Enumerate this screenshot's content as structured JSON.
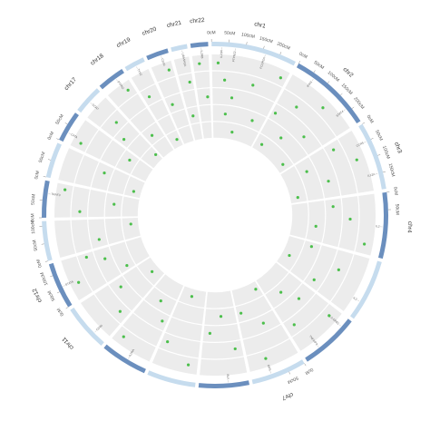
{
  "chart_data": {
    "type": "circos",
    "title": "",
    "colors": {
      "chrom_dark": "#6b8fbe",
      "chrom_light": "#c6dcee",
      "track_bg": "#ececec",
      "point": "#4cbf4c",
      "gene_label": "#666666"
    },
    "chromosomes": [
      {
        "name": "chr1",
        "label": "chr1",
        "length": 249,
        "ticks": [
          "0cM",
          "50cM",
          "100cM",
          "150cM",
          "200cM"
        ]
      },
      {
        "name": "chr2",
        "label": "chr2",
        "length": 243,
        "ticks": [
          "0cM",
          "50cM",
          "100cM",
          "150cM",
          "200cM"
        ]
      },
      {
        "name": "chr3",
        "label": "chr3",
        "length": 198,
        "ticks": [
          "0cM",
          "50cM",
          "100cM",
          "150cM"
        ]
      },
      {
        "name": "chr4",
        "label": "chr4",
        "length": 191,
        "ticks": [
          "0cM",
          "50cM"
        ]
      },
      {
        "name": "chr5",
        "label": "",
        "length": 181,
        "ticks": []
      },
      {
        "name": "chr6",
        "label": "",
        "length": 171,
        "ticks": []
      },
      {
        "name": "chr7",
        "label": "chr7",
        "length": 159,
        "ticks": [
          "0cM",
          "50cM"
        ]
      },
      {
        "name": "chr8",
        "label": "",
        "length": 146,
        "ticks": []
      },
      {
        "name": "chr9",
        "label": "",
        "length": 141,
        "ticks": []
      },
      {
        "name": "chr10",
        "label": "",
        "length": 136,
        "ticks": []
      },
      {
        "name": "chr11",
        "label": "chr11",
        "length": 135,
        "ticks": []
      },
      {
        "name": "chr12",
        "label": "chr12",
        "length": 134,
        "ticks": [
          "0cM",
          "50cM",
          "100cM"
        ]
      },
      {
        "name": "chr13",
        "label": "",
        "length": 115,
        "ticks": [
          "0cM",
          "50cM",
          "100cM"
        ]
      },
      {
        "name": "chr14",
        "label": "",
        "length": 107,
        "ticks": [
          "0cM",
          "50cM"
        ]
      },
      {
        "name": "chr15",
        "label": "",
        "length": 103,
        "ticks": [
          "0cM",
          "50cM"
        ]
      },
      {
        "name": "chr16",
        "label": "",
        "length": 90,
        "ticks": [
          "0cM",
          "50cM"
        ]
      },
      {
        "name": "chr17",
        "label": "chr17",
        "length": 83,
        "ticks": []
      },
      {
        "name": "chr18",
        "label": "chr18",
        "length": 80,
        "ticks": []
      },
      {
        "name": "chr19",
        "label": "chr19",
        "length": 59,
        "ticks": []
      },
      {
        "name": "chr20",
        "label": "chr20",
        "length": 64,
        "ticks": []
      },
      {
        "name": "chr21",
        "label": "chr21",
        "length": 47,
        "ticks": []
      },
      {
        "name": "chr22",
        "label": "chr22",
        "length": 51,
        "ticks": []
      }
    ],
    "tracks": 5,
    "points": [
      {
        "chr": "chr1",
        "pos": 20,
        "track": 1
      },
      {
        "chr": "chr1",
        "pos": 45,
        "track": 2
      },
      {
        "chr": "chr1",
        "pos": 60,
        "track": 4
      },
      {
        "chr": "chr1",
        "pos": 80,
        "track": 3
      },
      {
        "chr": "chr1",
        "pos": 110,
        "track": 5
      },
      {
        "chr": "chr1",
        "pos": 150,
        "track": 2
      },
      {
        "chr": "chr1",
        "pos": 195,
        "track": 4
      },
      {
        "chr": "chr1",
        "pos": 230,
        "track": 1
      },
      {
        "chr": "chr2",
        "pos": 15,
        "track": 3
      },
      {
        "chr": "chr2",
        "pos": 40,
        "track": 5
      },
      {
        "chr": "chr2",
        "pos": 70,
        "track": 2
      },
      {
        "chr": "chr2",
        "pos": 100,
        "track": 4
      },
      {
        "chr": "chr2",
        "pos": 140,
        "track": 1
      },
      {
        "chr": "chr2",
        "pos": 170,
        "track": 3
      },
      {
        "chr": "chr2",
        "pos": 210,
        "track": 5
      },
      {
        "chr": "chr3",
        "pos": 25,
        "track": 2
      },
      {
        "chr": "chr3",
        "pos": 55,
        "track": 4
      },
      {
        "chr": "chr3",
        "pos": 90,
        "track": 1
      },
      {
        "chr": "chr3",
        "pos": 130,
        "track": 3
      },
      {
        "chr": "chr3",
        "pos": 170,
        "track": 5
      },
      {
        "chr": "chr4",
        "pos": 30,
        "track": 3
      },
      {
        "chr": "chr4",
        "pos": 80,
        "track": 2
      },
      {
        "chr": "chr4",
        "pos": 120,
        "track": 4
      },
      {
        "chr": "chr4",
        "pos": 160,
        "track": 1
      },
      {
        "chr": "chr5",
        "pos": 20,
        "track": 4
      },
      {
        "chr": "chr5",
        "pos": 70,
        "track": 2
      },
      {
        "chr": "chr5",
        "pos": 110,
        "track": 5
      },
      {
        "chr": "chr5",
        "pos": 150,
        "track": 3
      },
      {
        "chr": "chr6",
        "pos": 30,
        "track": 1
      },
      {
        "chr": "chr6",
        "pos": 60,
        "track": 3
      },
      {
        "chr": "chr6",
        "pos": 100,
        "track": 4
      },
      {
        "chr": "chr6",
        "pos": 140,
        "track": 2
      },
      {
        "chr": "chr7",
        "pos": 20,
        "track": 5
      },
      {
        "chr": "chr7",
        "pos": 60,
        "track": 3
      },
      {
        "chr": "chr7",
        "pos": 100,
        "track": 1
      },
      {
        "chr": "chr7",
        "pos": 140,
        "track": 4
      },
      {
        "chr": "chr8",
        "pos": 25,
        "track": 2
      },
      {
        "chr": "chr8",
        "pos": 70,
        "track": 4
      },
      {
        "chr": "chr8",
        "pos": 120,
        "track": 3
      },
      {
        "chr": "chr9",
        "pos": 30,
        "track": 1
      },
      {
        "chr": "chr9",
        "pos": 80,
        "track": 5
      },
      {
        "chr": "chr9",
        "pos": 120,
        "track": 2
      },
      {
        "chr": "chr10",
        "pos": 20,
        "track": 3
      },
      {
        "chr": "chr10",
        "pos": 70,
        "track": 4
      },
      {
        "chr": "chr10",
        "pos": 110,
        "track": 1
      },
      {
        "chr": "chr11",
        "pos": 30,
        "track": 2
      },
      {
        "chr": "chr11",
        "pos": 60,
        "track": 5
      },
      {
        "chr": "chr11",
        "pos": 100,
        "track": 3
      },
      {
        "chr": "chr12",
        "pos": 20,
        "track": 4
      },
      {
        "chr": "chr12",
        "pos": 50,
        "track": 1
      },
      {
        "chr": "chr12",
        "pos": 90,
        "track": 3
      },
      {
        "chr": "chr12",
        "pos": 120,
        "track": 2
      },
      {
        "chr": "chr13",
        "pos": 30,
        "track": 3
      },
      {
        "chr": "chr13",
        "pos": 80,
        "track": 5
      },
      {
        "chr": "chr14",
        "pos": 20,
        "track": 2
      },
      {
        "chr": "chr14",
        "pos": 60,
        "track": 4
      },
      {
        "chr": "chr14",
        "pos": 90,
        "track": 1
      },
      {
        "chr": "chr15",
        "pos": 30,
        "track": 5
      },
      {
        "chr": "chr15",
        "pos": 70,
        "track": 3
      },
      {
        "chr": "chr16",
        "pos": 20,
        "track": 1
      },
      {
        "chr": "chr16",
        "pos": 60,
        "track": 4
      },
      {
        "chr": "chr17",
        "pos": 20,
        "track": 3
      },
      {
        "chr": "chr17",
        "pos": 50,
        "track": 2
      },
      {
        "chr": "chr17",
        "pos": 70,
        "track": 5
      },
      {
        "chr": "chr18",
        "pos": 30,
        "track": 4
      },
      {
        "chr": "chr18",
        "pos": 60,
        "track": 1
      },
      {
        "chr": "chr19",
        "pos": 20,
        "track": 2
      },
      {
        "chr": "chr19",
        "pos": 40,
        "track": 5
      },
      {
        "chr": "chr20",
        "pos": 20,
        "track": 3
      },
      {
        "chr": "chr20",
        "pos": 50,
        "track": 1
      },
      {
        "chr": "chr21",
        "pos": 20,
        "track": 4
      },
      {
        "chr": "chr21",
        "pos": 35,
        "track": 2
      },
      {
        "chr": "chr22",
        "pos": 20,
        "track": 1
      },
      {
        "chr": "chr22",
        "pos": 40,
        "track": 3
      }
    ],
    "gene_labels": [
      {
        "chr": "chr1",
        "pos": 30,
        "text": "IL23R"
      },
      {
        "chr": "chr1",
        "pos": 70,
        "text": "PTPN22"
      },
      {
        "chr": "chr1",
        "pos": 160,
        "text": "FCGR2A"
      },
      {
        "chr": "chr2",
        "pos": 60,
        "text": "IFIH1"
      },
      {
        "chr": "chr2",
        "pos": 190,
        "text": "STAT4"
      },
      {
        "chr": "chr3",
        "pos": 50,
        "text": "CCR5"
      },
      {
        "chr": "chr3",
        "pos": 150,
        "text": "IL12A"
      },
      {
        "chr": "chr4",
        "pos": 100,
        "text": "IL2"
      },
      {
        "chr": "chr5",
        "pos": 130,
        "text": "IL3"
      },
      {
        "chr": "chr6",
        "pos": 30,
        "text": "HLA-DRB1"
      },
      {
        "chr": "chr6",
        "pos": 120,
        "text": "TNFAIP3"
      },
      {
        "chr": "chr7",
        "pos": 100,
        "text": "IRF5"
      },
      {
        "chr": "chr8",
        "pos": 60,
        "text": "BLK"
      },
      {
        "chr": "chr10",
        "pos": 60,
        "text": "IL2RA"
      },
      {
        "chr": "chr11",
        "pos": 40,
        "text": "CD40"
      },
      {
        "chr": "chr12",
        "pos": 60,
        "text": "STAT6"
      },
      {
        "chr": "chr14",
        "pos": 70,
        "text": "TRAF3"
      },
      {
        "chr": "chr16",
        "pos": 30,
        "text": "CIITA"
      },
      {
        "chr": "chr17",
        "pos": 40,
        "text": "CCR7"
      },
      {
        "chr": "chr18",
        "pos": 50,
        "text": "PTPN2"
      },
      {
        "chr": "chr19",
        "pos": 30,
        "text": "TYK2"
      },
      {
        "chr": "chr20",
        "pos": 40,
        "text": "CD40"
      },
      {
        "chr": "chr21",
        "pos": 30,
        "text": "UBASH3A"
      },
      {
        "chr": "chr22",
        "pos": 30,
        "text": "IL2RB"
      }
    ]
  }
}
